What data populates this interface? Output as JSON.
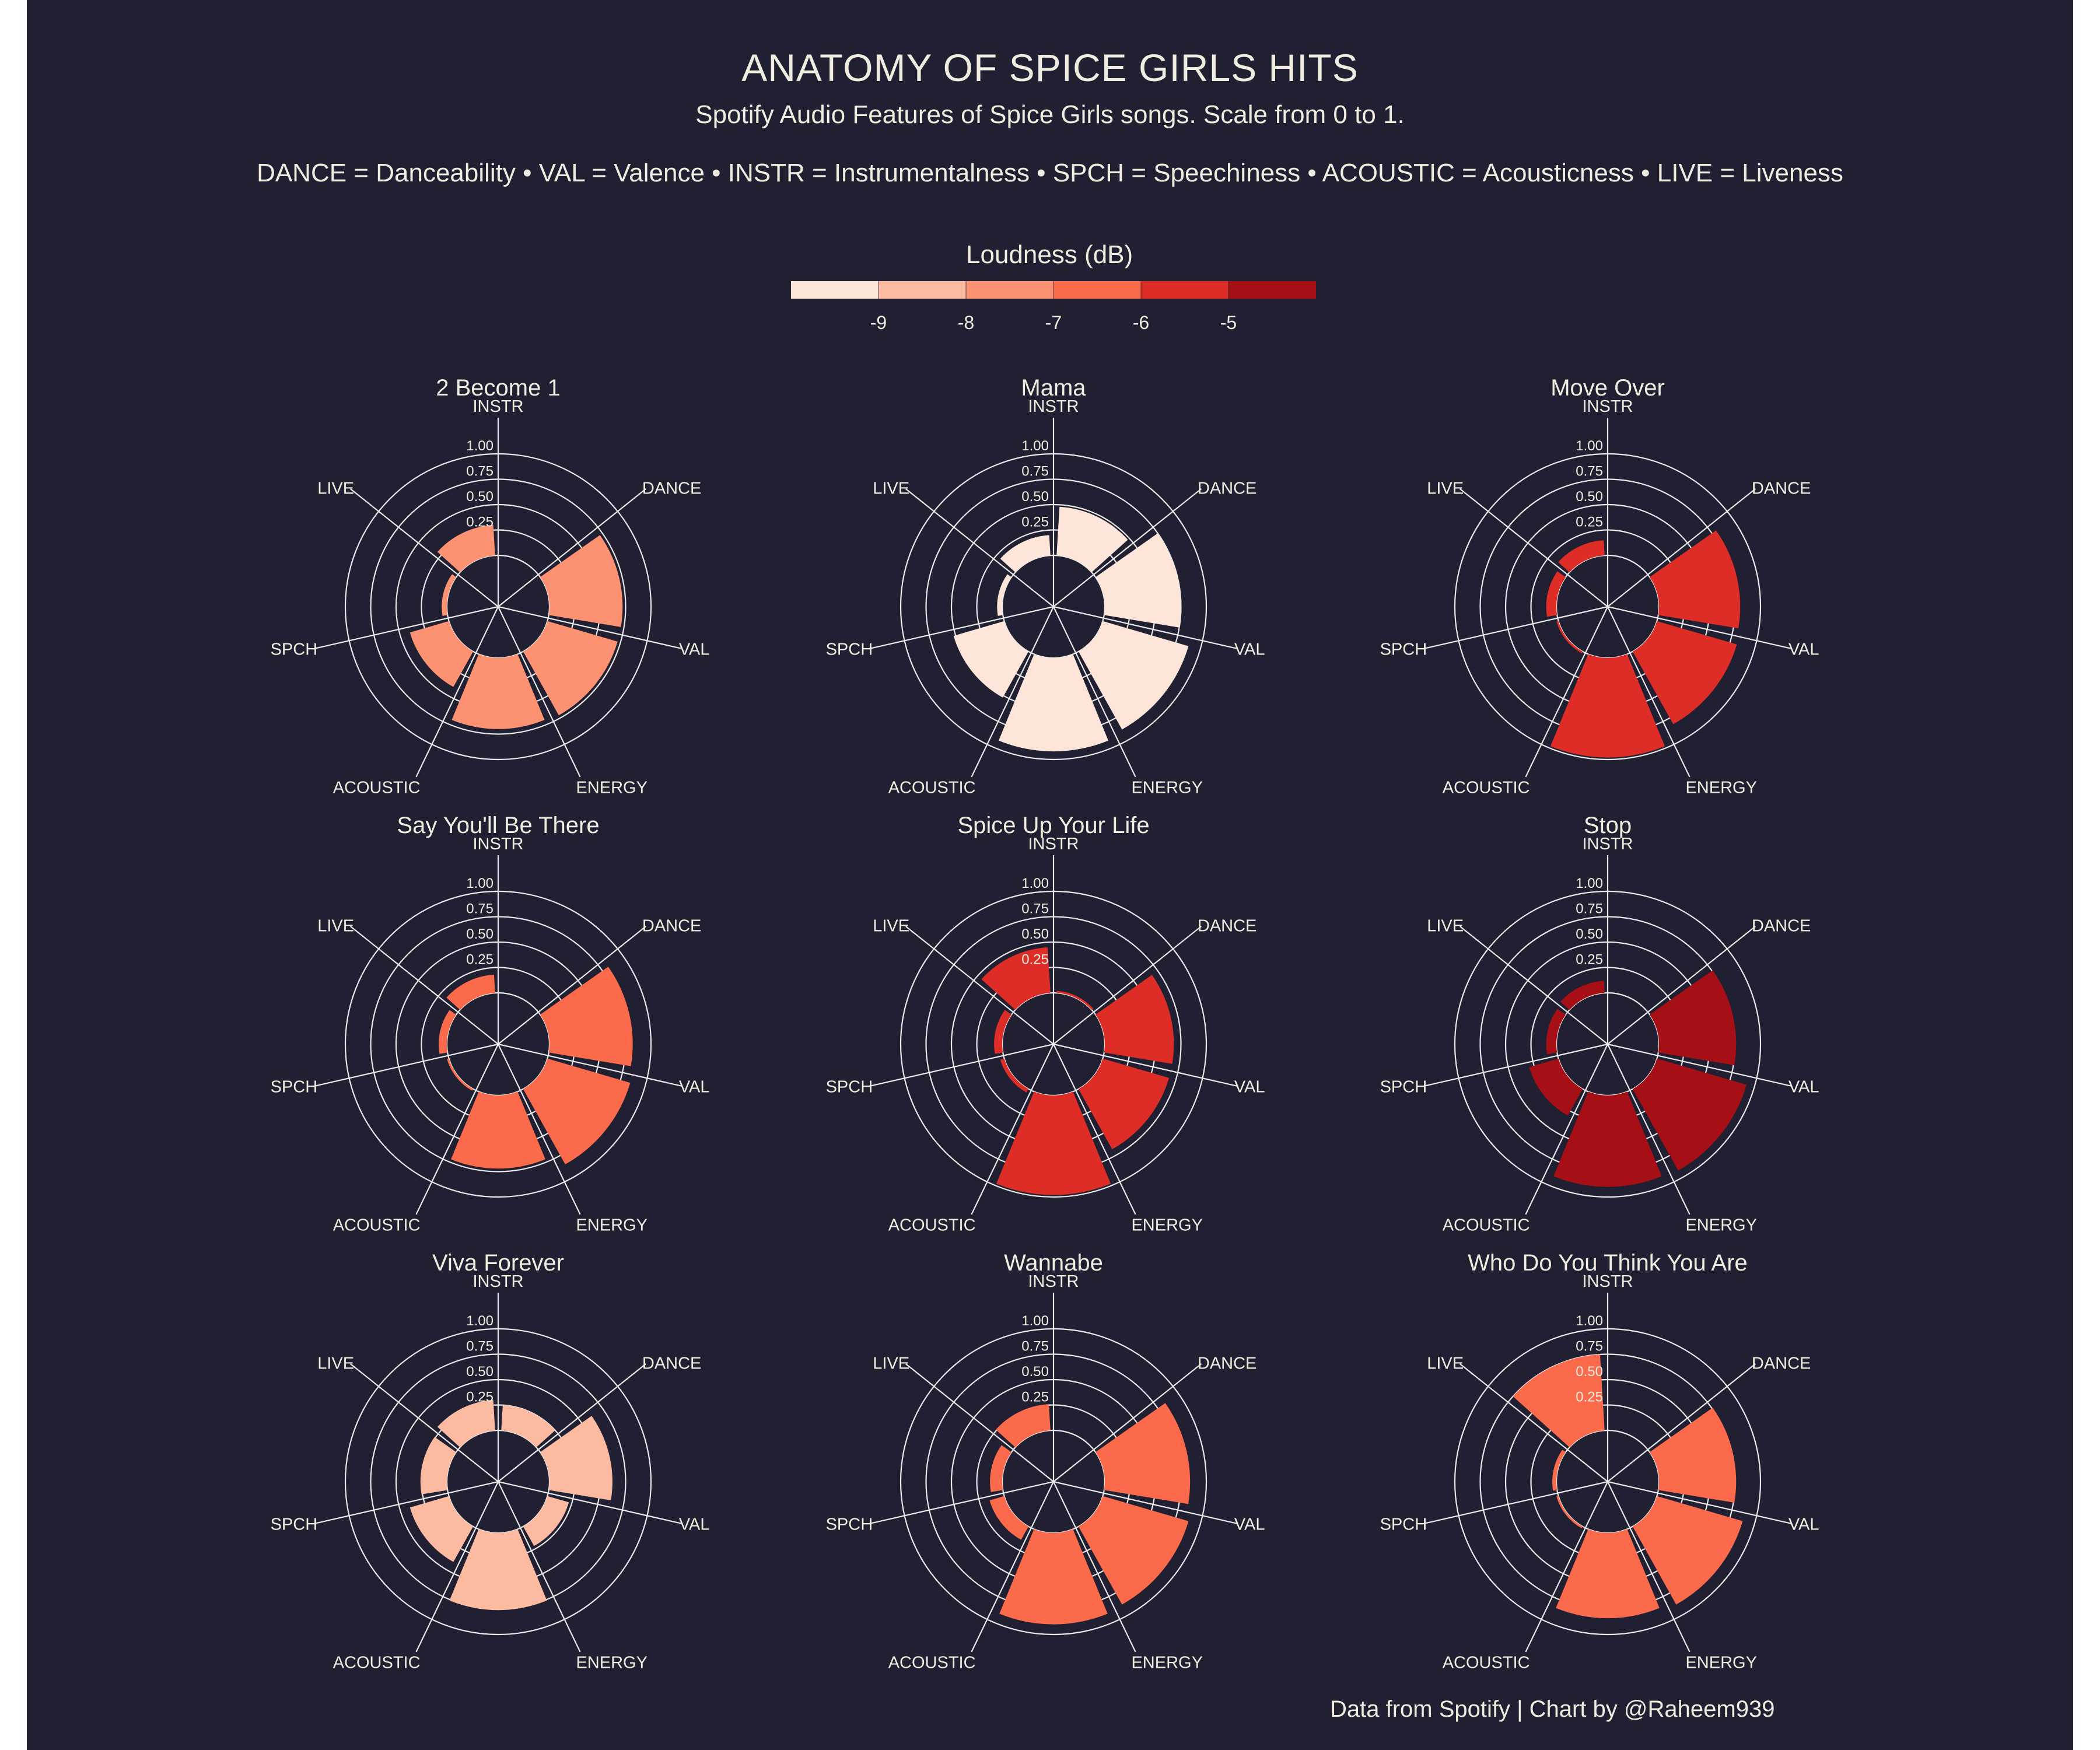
{
  "header": {
    "title": "ANATOMY OF SPICE GIRLS HITS",
    "subtitle": "Spotify Audio Features of Spice Girls songs. Scale from 0 to 1.",
    "abbreviations": "DANCE = Danceability  •  VAL = Valence  •  INSTR = Instrumentalness  •  SPCH = Speechiness  •  ACOUSTIC = Acousticness  •  LIVE = Liveness"
  },
  "caption": "Data from Spotify | Chart by @Raheem939",
  "legend": {
    "title": "Loudness (dB)",
    "tick_labels": [
      "-9",
      "-8",
      "-7",
      "-6",
      "-5"
    ],
    "bin_colors": [
      "#fee5d9",
      "#fcbba1",
      "#fc9272",
      "#fb6a4a",
      "#de2d26",
      "#a50f15"
    ]
  },
  "colors": {
    "background": "#202032",
    "text": "#f1ece0",
    "grid": "#e8e8e8"
  },
  "chart_data": {
    "type": "polar-bar",
    "axes": [
      "INSTR",
      "DANCE",
      "VAL",
      "ENERGY",
      "ACOUSTIC",
      "SPCH",
      "LIVE"
    ],
    "radial_ticks": [
      "0.25",
      "0.50",
      "0.75",
      "1.00"
    ],
    "rlim": [
      0,
      1
    ],
    "fill_variable": "Loudness (dB)",
    "series": [
      {
        "name": "2 Become 1",
        "loudness": -8.0,
        "values": [
          0.0,
          0.72,
          0.72,
          0.7,
          0.4,
          0.05,
          0.3
        ],
        "color": "#fc9272"
      },
      {
        "name": "Mama",
        "loudness": -9.5,
        "values": [
          0.48,
          0.75,
          0.88,
          0.92,
          0.52,
          0.05,
          0.2
        ],
        "color": "#fee5d9"
      },
      {
        "name": "Move Over",
        "loudness": -5.5,
        "values": [
          0.0,
          0.8,
          0.82,
          0.98,
          0.02,
          0.1,
          0.15
        ],
        "color": "#de2d26"
      },
      {
        "name": "Say You'll Be There",
        "loudness": -6.5,
        "values": [
          0.0,
          0.82,
          0.85,
          0.72,
          0.02,
          0.08,
          0.18
        ],
        "color": "#fb6a4a"
      },
      {
        "name": "Spice Up Your Life",
        "loudness": -5.5,
        "values": [
          0.02,
          0.68,
          0.68,
          0.98,
          0.04,
          0.08,
          0.45
        ],
        "color": "#de2d26"
      },
      {
        "name": "Stop",
        "loudness": -4.5,
        "values": [
          0.0,
          0.76,
          0.92,
          0.9,
          0.3,
          0.1,
          0.12
        ],
        "color": "#a50f15"
      },
      {
        "name": "Viva Forever",
        "loudness": -8.5,
        "values": [
          0.25,
          0.62,
          0.22,
          0.76,
          0.4,
          0.26,
          0.3
        ],
        "color": "#fcbba1"
      },
      {
        "name": "Wannabe",
        "loudness": -6.5,
        "values": [
          0.0,
          0.84,
          0.88,
          0.9,
          0.15,
          0.12,
          0.26
        ],
        "color": "#fb6a4a"
      },
      {
        "name": "Who Do You Think You Are",
        "loudness": -6.5,
        "values": [
          0.0,
          0.76,
          0.88,
          0.84,
          0.02,
          0.04,
          0.75
        ],
        "color": "#fb6a4a"
      }
    ]
  }
}
